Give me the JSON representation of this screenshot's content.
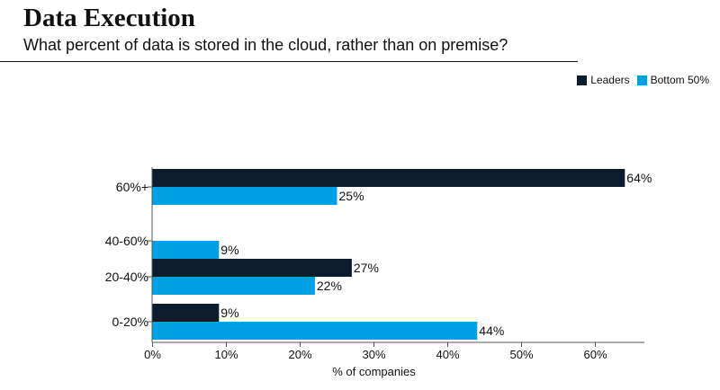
{
  "header": {
    "title": "Data Execution",
    "subtitle": "What percent of data is stored in the cloud, rather than on premise?"
  },
  "colors": {
    "leaders": "#0b1c2c",
    "bottom50": "#00a1e4"
  },
  "chart_data": {
    "type": "bar",
    "orientation": "horizontal",
    "title": "Data Execution",
    "subtitle": "What percent of data is stored in the cloud, rather than on premise?",
    "xlabel": "% of companies",
    "ylabel": "",
    "categories": [
      "60%+",
      "40-60%",
      "20-40%",
      "0-20%"
    ],
    "series": [
      {
        "name": "Leaders",
        "color": "#0b1c2c",
        "values": [
          64,
          null,
          27,
          9
        ],
        "labels": [
          "64%",
          "",
          "27%",
          "9%"
        ]
      },
      {
        "name": "Bottom 50%",
        "color": "#00a1e4",
        "values": [
          25,
          9,
          22,
          44
        ],
        "labels": [
          "25%",
          "9%",
          "22%",
          "44%"
        ]
      }
    ],
    "xlim": [
      0,
      67
    ],
    "xticks": [
      0,
      10,
      20,
      30,
      40,
      50,
      60
    ],
    "xtick_labels": [
      "0%",
      "10%",
      "20%",
      "30%",
      "40%",
      "50%",
      "60%"
    ],
    "legend": "top-right",
    "grid": false
  }
}
